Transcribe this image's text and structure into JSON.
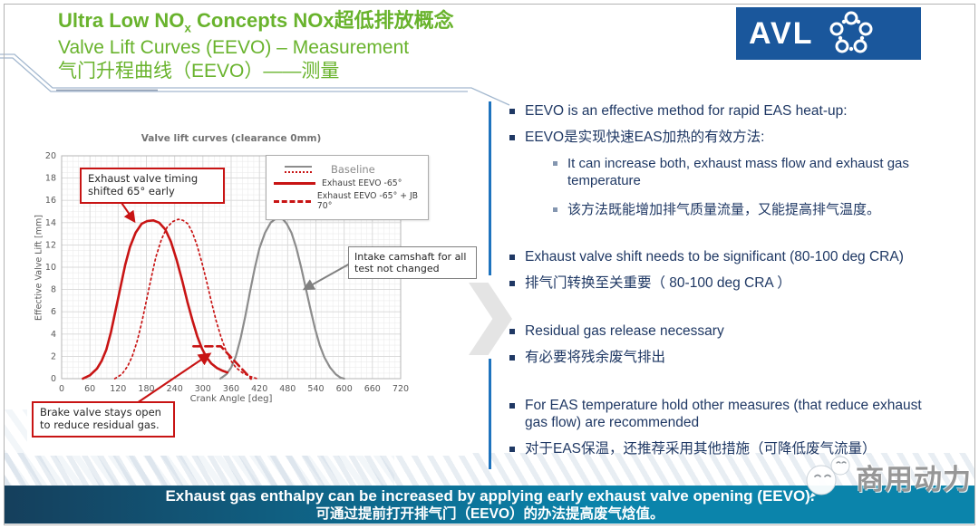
{
  "header": {
    "title_bold_prefix": "Ultra Low NO",
    "title_bold_sub": "x",
    "title_bold_suffix": " Concepts NOx超低排放概念",
    "title_line2": "Valve Lift Curves (EEVO) – Measurement",
    "title_line3": "气门升程曲线（EEVO）——测量",
    "logo_text": "AVL"
  },
  "colors": {
    "title_green": "#69b32d",
    "body_navy": "#1f3864",
    "avl_blue": "#1a579c",
    "accent_red": "#c81414",
    "baseline_gray": "#8c8c8c",
    "footer_left": "#153f5c",
    "footer_right": "#0b84ab"
  },
  "right_panel": {
    "bullets": [
      {
        "level": 1,
        "gap": false,
        "text": "EEVO is an effective method for rapid EAS heat-up:"
      },
      {
        "level": 1,
        "gap": false,
        "text": "EEVO是实现快速EAS加热的有效方法:"
      },
      {
        "level": 2,
        "gap": false,
        "text": "It can increase both, exhaust mass flow and exhaust gas temperature"
      },
      {
        "level": 2,
        "gap": false,
        "text": "该方法既能增加排气质量流量，又能提高排气温度。"
      },
      {
        "level": 1,
        "gap": true,
        "text": "Exhaust valve shift needs to be significant (80-100 deg CRA)"
      },
      {
        "level": 1,
        "gap": false,
        "text": "排气门转换至关重要（ 80-100 deg CRA ）"
      },
      {
        "level": 1,
        "gap": true,
        "text": "Residual gas release necessary"
      },
      {
        "level": 1,
        "gap": false,
        "text": "有必要将残余废气排出"
      },
      {
        "level": 1,
        "gap": true,
        "text": "For EAS temperature hold other measures (that reduce exhaust gas flow) are recommended"
      },
      {
        "level": 1,
        "gap": false,
        "text": "对于EAS保温，还推荐采用其他措施（可降低废气流量）"
      }
    ]
  },
  "footer": {
    "line1": "Exhaust gas enthalpy can be increased by applying early exhaust valve opening (EEVO).",
    "line2": "可通过提前打开排气门（EEVO）的办法提高废气焓值。"
  },
  "watermark": {
    "text": "商用动力"
  },
  "chart_data": {
    "type": "line",
    "title": "Valve lift curves (clearance 0mm)",
    "xlabel": "Crank Angle [deg]",
    "ylabel": "Effective Valve Lift [mm]",
    "xlim": [
      0,
      720
    ],
    "ylim": [
      0,
      20
    ],
    "xtick_step": 60,
    "ytick_step": 2,
    "grid": {
      "minor_x": 12,
      "minor_y": 0.5
    },
    "series": [
      {
        "name": "Baseline intake",
        "color": "#8c8c8c",
        "style": "solid",
        "width": 2.2,
        "points": [
          [
            337,
            0
          ],
          [
            350,
            0.4
          ],
          [
            360,
            1.0
          ],
          [
            370,
            2.0
          ],
          [
            380,
            3.6
          ],
          [
            390,
            5.6
          ],
          [
            400,
            7.8
          ],
          [
            410,
            9.9
          ],
          [
            420,
            11.7
          ],
          [
            432,
            13.1
          ],
          [
            444,
            14.0
          ],
          [
            456,
            14.4
          ],
          [
            468,
            14.4
          ],
          [
            478,
            13.9
          ],
          [
            488,
            13.1
          ],
          [
            498,
            11.8
          ],
          [
            508,
            10.1
          ],
          [
            518,
            8.2
          ],
          [
            528,
            6.3
          ],
          [
            538,
            4.5
          ],
          [
            548,
            3.0
          ],
          [
            558,
            1.9
          ],
          [
            570,
            1.0
          ],
          [
            582,
            0.4
          ],
          [
            592,
            0.1
          ],
          [
            600,
            0
          ]
        ]
      },
      {
        "name": "Baseline exhaust",
        "color": "#c81414",
        "style": "dotted",
        "width": 1.7,
        "points": [
          [
            113,
            0
          ],
          [
            128,
            0.4
          ],
          [
            140,
            1.1
          ],
          [
            150,
            2.0
          ],
          [
            160,
            3.3
          ],
          [
            170,
            5.0
          ],
          [
            180,
            7.0
          ],
          [
            190,
            9.0
          ],
          [
            200,
            10.9
          ],
          [
            212,
            12.5
          ],
          [
            224,
            13.6
          ],
          [
            236,
            14.1
          ],
          [
            248,
            14.3
          ],
          [
            258,
            14.2
          ],
          [
            268,
            13.9
          ],
          [
            278,
            13.1
          ],
          [
            288,
            11.9
          ],
          [
            298,
            10.4
          ],
          [
            308,
            8.7
          ],
          [
            318,
            6.9
          ],
          [
            328,
            5.2
          ],
          [
            338,
            3.8
          ],
          [
            348,
            2.6
          ],
          [
            358,
            1.7
          ],
          [
            370,
            1.0
          ],
          [
            385,
            0.5
          ],
          [
            400,
            0.2
          ],
          [
            415,
            0
          ]
        ]
      },
      {
        "name": "Exhaust EEVO -65°",
        "color": "#c81414",
        "style": "solid",
        "width": 2.6,
        "points": [
          [
            45,
            0
          ],
          [
            60,
            0.3
          ],
          [
            75,
            0.9
          ],
          [
            85,
            1.6
          ],
          [
            95,
            2.6
          ],
          [
            105,
            4.2
          ],
          [
            115,
            6.2
          ],
          [
            125,
            8.2
          ],
          [
            135,
            10.2
          ],
          [
            145,
            11.8
          ],
          [
            157,
            13.1
          ],
          [
            170,
            13.9
          ],
          [
            182,
            14.15
          ],
          [
            195,
            14.2
          ],
          [
            207,
            14.0
          ],
          [
            220,
            13.4
          ],
          [
            232,
            12.3
          ],
          [
            244,
            10.7
          ],
          [
            256,
            8.8
          ],
          [
            267,
            6.9
          ],
          [
            278,
            5.2
          ],
          [
            288,
            3.8
          ],
          [
            298,
            2.7
          ],
          [
            308,
            1.9
          ],
          [
            318,
            1.35
          ],
          [
            330,
            0.95
          ],
          [
            342,
            0.7
          ],
          [
            352,
            0.55
          ]
        ]
      },
      {
        "name": "Exhaust EEVO -65° + JB 70°",
        "color": "#c81414",
        "style": "dashed",
        "width": 2.6,
        "points": [
          [
            280,
            2.9
          ],
          [
            338,
            2.9
          ],
          [
            402,
            0
          ]
        ]
      }
    ],
    "legend": {
      "position": "top-right",
      "entries": [
        {
          "label": "Baseline",
          "swatches": [
            "gray-solid",
            "red-dotted"
          ]
        },
        {
          "label": "Exhaust EEVO -65°",
          "swatches": [
            "red-solid"
          ]
        },
        {
          "label": "Exhaust EEVO -65° + JB 70°",
          "swatches": [
            "red-dashed"
          ]
        }
      ]
    },
    "annotations": [
      {
        "text": "Exhaust valve timing shifted 65° early",
        "color": "red"
      },
      {
        "text": "Intake camshaft for all test not changed",
        "color": "gray"
      },
      {
        "text": "Brake valve stays open to reduce residual gas.",
        "color": "red"
      }
    ]
  }
}
